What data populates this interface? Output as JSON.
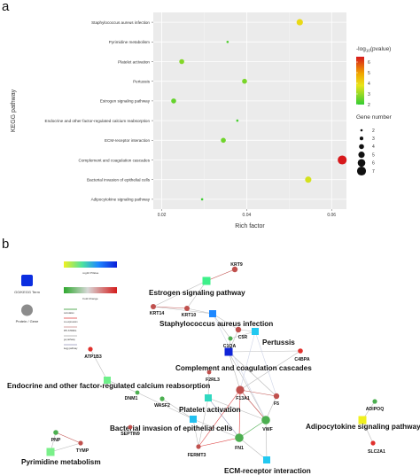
{
  "panel_a": {
    "letter": "a"
  },
  "panel_b": {
    "letter": "b"
  },
  "chart_data": {
    "type": "scatter",
    "title": "",
    "xlabel": "Rich factor",
    "ylabel": "KEGG pathway",
    "xlim": [
      0.018,
      0.0635
    ],
    "x_ticks": [
      0.02,
      0.04,
      0.06
    ],
    "x_tick_labels": [
      "0.02",
      "0.04",
      "0.06"
    ],
    "categories": [
      "Staphylococcus aureus infection",
      "Pyrimidine metabolism",
      "Platelet activation",
      "Pertussis",
      "Estrogen signaling pathway",
      "Endocrine and other factor-regulated calcium reabsorption",
      "ECM-receptor interaction",
      "Complement and coagulation cascades",
      "Bacterial invasion of epithelial cells",
      "Adipocytokine signaling pathway"
    ],
    "points": [
      {
        "pathway": "Staphylococcus aureus infection",
        "rich_factor": 0.0525,
        "neg_log10_p": 4.0,
        "gene_number": 5
      },
      {
        "pathway": "Pyrimidine metabolism",
        "rich_factor": 0.0355,
        "neg_log10_p": 2.3,
        "gene_number": 2
      },
      {
        "pathway": "Platelet activation",
        "rich_factor": 0.0247,
        "neg_log10_p": 2.8,
        "gene_number": 4
      },
      {
        "pathway": "Pertussis",
        "rich_factor": 0.0395,
        "neg_log10_p": 2.7,
        "gene_number": 4
      },
      {
        "pathway": "Estrogen signaling pathway",
        "rich_factor": 0.0228,
        "neg_log10_p": 2.5,
        "gene_number": 4
      },
      {
        "pathway": "Endocrine and other factor-regulated calcium reabsorption",
        "rich_factor": 0.0378,
        "neg_log10_p": 2.2,
        "gene_number": 2
      },
      {
        "pathway": "ECM-receptor interaction",
        "rich_factor": 0.0345,
        "neg_log10_p": 2.6,
        "gene_number": 4
      },
      {
        "pathway": "Complement and coagulation cascades",
        "rich_factor": 0.0625,
        "neg_log10_p": 6.5,
        "gene_number": 7
      },
      {
        "pathway": "Bacterial invasion of epithelial cells",
        "rich_factor": 0.0545,
        "neg_log10_p": 3.6,
        "gene_number": 5
      },
      {
        "pathway": "Adipocytokine signaling pathway",
        "rich_factor": 0.0295,
        "neg_log10_p": 2.1,
        "gene_number": 2
      }
    ],
    "color_legend": {
      "title_prefix": "-log",
      "title_sub": "10",
      "title_suffix": "(pvalue)",
      "ticks": [
        "6",
        "5",
        "4",
        "3",
        "2"
      ],
      "scale": [
        "#d7191c",
        "#f0a500",
        "#e8e41a",
        "#33cc33"
      ],
      "range": [
        2,
        6.5
      ]
    },
    "size_legend": {
      "title": "Gene number",
      "values": [
        "2",
        "3",
        "4",
        "5",
        "6",
        "7"
      ]
    }
  },
  "network": {
    "legend": {
      "term_label": "GO/KEGG Term",
      "gene_label": "Protein / Gene",
      "pvalue_label": "-log10 PValue",
      "fold_label": "Fold Change",
      "line_labels": [
        "correlation",
        "co-expression",
        "PPI-STRING",
        "go pathway",
        "kegg pathway"
      ],
      "term_color": "#0b2ee0",
      "gene_color": "#8c8c8c"
    },
    "terms": [
      {
        "id": "estrogen",
        "label": "Estrogen signaling pathway",
        "color": "#3ef08a"
      },
      {
        "id": "staph",
        "label": "Staphylococcus aureus infection",
        "color": "#1e88ff"
      },
      {
        "id": "pertussis",
        "label": "Pertussis",
        "color": "#22c8f0"
      },
      {
        "id": "complement",
        "label": "Complement and coagulation cascades",
        "color": "#1024d8"
      },
      {
        "id": "endocrine",
        "label": "Endocrine and other factor-regulated calcium reabsorption",
        "color": "#6ef08a"
      },
      {
        "id": "platelet",
        "label": "Platelet activation",
        "color": "#30d8c0"
      },
      {
        "id": "bacterial",
        "label": "Bacterial invasion of epithelial cells",
        "color": "#22c0f0"
      },
      {
        "id": "adipo",
        "label": "Adipocytokine signaling pathway",
        "color": "#f0f020"
      },
      {
        "id": "pyrimidine",
        "label": "Pyrimidine metabolism",
        "color": "#7af08a"
      },
      {
        "id": "ecm",
        "label": "ECM-receptor interaction",
        "color": "#22c8f0"
      }
    ],
    "genes": [
      {
        "id": "KRT9",
        "label": "KRT9",
        "color": "#c0504d"
      },
      {
        "id": "KRT14",
        "label": "KRT14",
        "color": "#c0504d"
      },
      {
        "id": "KRT10",
        "label": "KRT10",
        "color": "#c0504d"
      },
      {
        "id": "C5R",
        "label": "C5R",
        "color": "#c0504d"
      },
      {
        "id": "C1QA",
        "label": "C1QA",
        "color": "#4caf50"
      },
      {
        "id": "C4BPA",
        "label": "C4BPA",
        "color": "#e0302c"
      },
      {
        "id": "ATP1B3",
        "label": "ATP1B3",
        "color": "#e0302c"
      },
      {
        "id": "F2RL3",
        "label": "F2RL3",
        "color": "#c0504d"
      },
      {
        "id": "DNM1",
        "label": "DNM1",
        "color": "#4caf50"
      },
      {
        "id": "WASF2",
        "label": "WASF2",
        "color": "#4caf50"
      },
      {
        "id": "F13A1",
        "label": "F13A1",
        "color": "#c0504d"
      },
      {
        "id": "F5",
        "label": "F5",
        "color": "#c0504d"
      },
      {
        "id": "FN1",
        "label": "FN1",
        "color": "#4caf50"
      },
      {
        "id": "VWF",
        "label": "VWF",
        "color": "#4caf50"
      },
      {
        "id": "FERMT3",
        "label": "FERMT3",
        "color": "#c0504d"
      },
      {
        "id": "SEPTIN9",
        "label": "SEPTIN9",
        "color": "#c0504d"
      },
      {
        "id": "PNP",
        "label": "PNP",
        "color": "#4caf50"
      },
      {
        "id": "TYMP",
        "label": "TYMP",
        "color": "#c0504d"
      },
      {
        "id": "ADIPOQ",
        "label": "ADIPOQ",
        "color": "#4caf50"
      },
      {
        "id": "SLC2A1",
        "label": "SLC2A1",
        "color": "#e0302c"
      }
    ]
  }
}
